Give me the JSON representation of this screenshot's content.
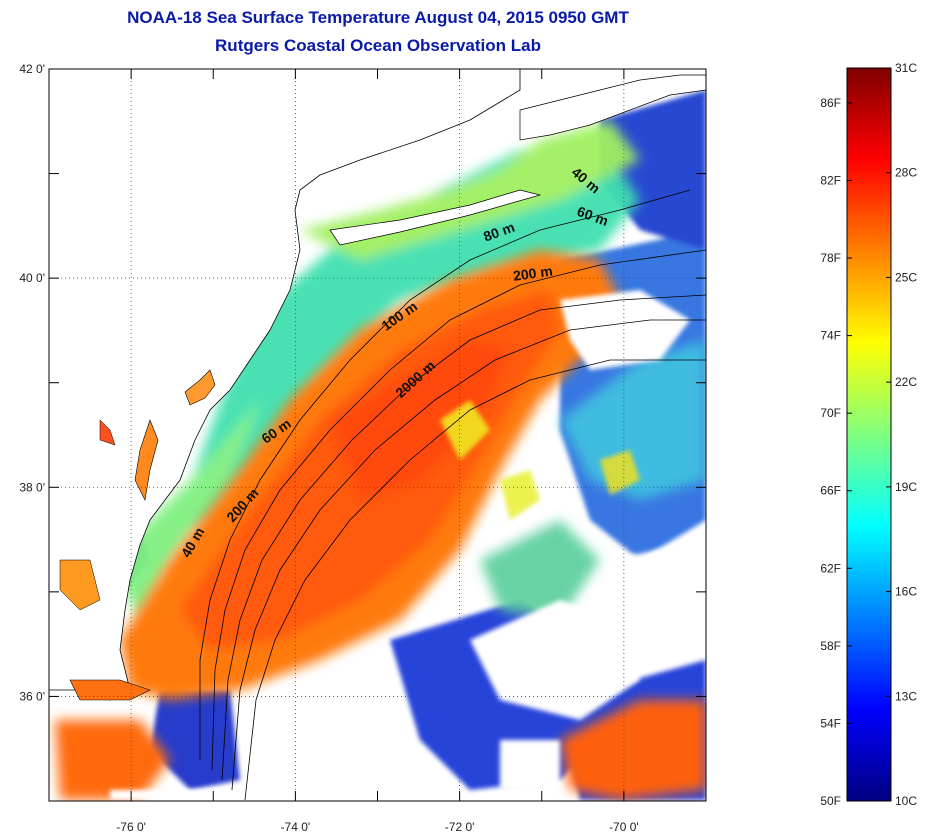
{
  "title": {
    "line1": "NOAA-18 Sea Surface Temperature August 04, 2015 0950 GMT",
    "line2": "Rutgers Coastal Ocean Observation Lab"
  },
  "map": {
    "lon_range": [
      -77,
      -69
    ],
    "lat_range": [
      35,
      42
    ],
    "x_ticks": [
      {
        "value": -76,
        "label": "-76 0'"
      },
      {
        "value": -74,
        "label": "-74 0'"
      },
      {
        "value": -72,
        "label": "-72 0'"
      },
      {
        "value": -70,
        "label": "-70 0'"
      }
    ],
    "y_ticks": [
      {
        "value": 42,
        "label": "42 0'"
      },
      {
        "value": 40,
        "label": "40 0'"
      },
      {
        "value": 38,
        "label": "38 0'"
      },
      {
        "value": 36,
        "label": "36 0'"
      }
    ],
    "grid": "dotted",
    "contour_labels": [
      {
        "text": "40 m",
        "lon": -70.5,
        "lat": 40.9,
        "angle": 40
      },
      {
        "text": "60 m",
        "lon": -70.4,
        "lat": 40.55,
        "angle": 20
      },
      {
        "text": "80 m",
        "lon": -71.5,
        "lat": 40.4,
        "angle": -20
      },
      {
        "text": "200 m",
        "lon": -71.1,
        "lat": 40.0,
        "angle": -8
      },
      {
        "text": "100 m",
        "lon": -72.7,
        "lat": 39.6,
        "angle": -35
      },
      {
        "text": "2000 m",
        "lon": -72.5,
        "lat": 39.0,
        "angle": -42
      },
      {
        "text": "60 m",
        "lon": -74.2,
        "lat": 38.5,
        "angle": -35
      },
      {
        "text": "200 m",
        "lon": -74.6,
        "lat": 37.8,
        "angle": -48
      },
      {
        "text": "40 m",
        "lon": -75.2,
        "lat": 37.45,
        "angle": -60
      }
    ]
  },
  "colorbar": {
    "colors": [
      "#000080",
      "#0000ff",
      "#0080ff",
      "#00ffff",
      "#80ff80",
      "#ffff00",
      "#ff8000",
      "#ff0000",
      "#800000"
    ],
    "celsius": [
      {
        "value": 31,
        "label": "31C"
      },
      {
        "value": 28,
        "label": "28C"
      },
      {
        "value": 25,
        "label": "25C"
      },
      {
        "value": 22,
        "label": "22C"
      },
      {
        "value": 19,
        "label": "19C"
      },
      {
        "value": 16,
        "label": "16C"
      },
      {
        "value": 13,
        "label": "13C"
      },
      {
        "value": 10,
        "label": "10C"
      }
    ],
    "fahrenheit": [
      {
        "value": 86,
        "label": "86F"
      },
      {
        "value": 82,
        "label": "82F"
      },
      {
        "value": 78,
        "label": "78F"
      },
      {
        "value": 74,
        "label": "74F"
      },
      {
        "value": 70,
        "label": "70F"
      },
      {
        "value": 66,
        "label": "66F"
      },
      {
        "value": 62,
        "label": "62F"
      },
      {
        "value": 58,
        "label": "58F"
      },
      {
        "value": 54,
        "label": "54F"
      },
      {
        "value": 50,
        "label": "50F"
      }
    ]
  }
}
